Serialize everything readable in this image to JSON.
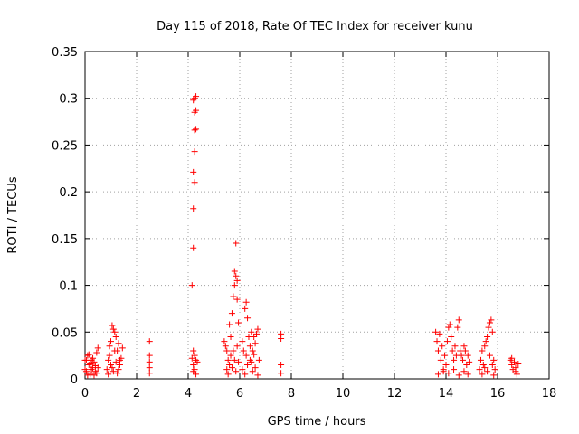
{
  "chart_data": {
    "type": "scatter",
    "title": "Day 115 of 2018, Rate Of TEC Index for receiver kunu",
    "xlabel": "GPS time / hours",
    "ylabel": "ROTI / TECUs",
    "xlim": [
      0,
      18
    ],
    "ylim": [
      0,
      0.35
    ],
    "xticks": [
      0,
      2,
      4,
      6,
      8,
      10,
      12,
      14,
      16,
      18
    ],
    "xtick_labels": [
      "0",
      "2",
      "4",
      "6",
      "8",
      "10",
      "12",
      "14",
      "16",
      "18"
    ],
    "yticks": [
      0,
      0.05,
      0.1,
      0.15,
      0.2,
      0.25,
      0.3,
      0.35
    ],
    "ytick_labels": [
      "0",
      "0.05",
      "0.1",
      "0.15",
      "0.2",
      "0.25",
      "0.3",
      "0.35"
    ],
    "grid": true,
    "marker": "+",
    "color": "#ff0000",
    "series": [
      {
        "name": "ROTI",
        "points": [
          [
            0.0,
            0.01
          ],
          [
            0.05,
            0.02
          ],
          [
            0.1,
            0.025
          ],
          [
            0.15,
            0.015
          ],
          [
            0.2,
            0.005
          ],
          [
            0.25,
            0.02
          ],
          [
            0.3,
            0.012
          ],
          [
            0.35,
            0.018
          ],
          [
            0.4,
            0.008
          ],
          [
            0.45,
            0.028
          ],
          [
            0.5,
            0.033
          ],
          [
            0.1,
            0.004
          ],
          [
            0.2,
            0.016
          ],
          [
            0.3,
            0.022
          ],
          [
            0.4,
            0.014
          ],
          [
            0.45,
            0.006
          ],
          [
            0.0,
            0.02
          ],
          [
            0.15,
            0.026
          ],
          [
            0.25,
            0.01
          ],
          [
            0.35,
            0.004
          ],
          [
            0.05,
            0.008
          ],
          [
            0.5,
            0.012
          ],
          [
            0.85,
            0.01
          ],
          [
            0.9,
            0.02
          ],
          [
            0.95,
            0.035
          ],
          [
            1.0,
            0.04
          ],
          [
            1.05,
            0.057
          ],
          [
            1.1,
            0.053
          ],
          [
            1.15,
            0.05
          ],
          [
            1.2,
            0.045
          ],
          [
            1.25,
            0.03
          ],
          [
            1.3,
            0.038
          ],
          [
            1.35,
            0.02
          ],
          [
            0.9,
            0.005
          ],
          [
            1.0,
            0.015
          ],
          [
            1.1,
            0.008
          ],
          [
            1.2,
            0.018
          ],
          [
            1.3,
            0.01
          ],
          [
            1.4,
            0.022
          ],
          [
            1.45,
            0.033
          ],
          [
            0.95,
            0.025
          ],
          [
            1.05,
            0.012
          ],
          [
            1.15,
            0.03
          ],
          [
            1.25,
            0.006
          ],
          [
            1.35,
            0.015
          ],
          [
            2.5,
            0.04
          ],
          [
            2.5,
            0.025
          ],
          [
            2.5,
            0.018
          ],
          [
            2.5,
            0.012
          ],
          [
            2.5,
            0.006
          ],
          [
            4.15,
            0.1
          ],
          [
            4.2,
            0.14
          ],
          [
            4.2,
            0.182
          ],
          [
            4.25,
            0.21
          ],
          [
            4.2,
            0.221
          ],
          [
            4.25,
            0.243
          ],
          [
            4.25,
            0.266
          ],
          [
            4.3,
            0.267
          ],
          [
            4.25,
            0.285
          ],
          [
            4.3,
            0.287
          ],
          [
            4.2,
            0.298
          ],
          [
            4.3,
            0.302
          ],
          [
            4.25,
            0.3
          ],
          [
            4.2,
            0.03
          ],
          [
            4.25,
            0.025
          ],
          [
            4.3,
            0.02
          ],
          [
            4.2,
            0.015
          ],
          [
            4.25,
            0.01
          ],
          [
            4.3,
            0.005
          ],
          [
            4.35,
            0.018
          ],
          [
            4.15,
            0.022
          ],
          [
            4.2,
            0.008
          ],
          [
            5.4,
            0.04
          ],
          [
            5.45,
            0.035
          ],
          [
            5.5,
            0.03
          ],
          [
            5.55,
            0.02
          ],
          [
            5.6,
            0.058
          ],
          [
            5.65,
            0.045
          ],
          [
            5.7,
            0.07
          ],
          [
            5.75,
            0.088
          ],
          [
            5.8,
            0.1
          ],
          [
            5.85,
            0.11
          ],
          [
            5.8,
            0.115
          ],
          [
            5.9,
            0.105
          ],
          [
            5.85,
            0.145
          ],
          [
            5.9,
            0.085
          ],
          [
            5.95,
            0.06
          ],
          [
            5.5,
            0.01
          ],
          [
            5.55,
            0.005
          ],
          [
            5.6,
            0.015
          ],
          [
            5.65,
            0.025
          ],
          [
            5.7,
            0.012
          ],
          [
            5.75,
            0.03
          ],
          [
            5.8,
            0.02
          ],
          [
            5.85,
            0.008
          ],
          [
            5.9,
            0.035
          ],
          [
            5.95,
            0.018
          ],
          [
            6.1,
            0.04
          ],
          [
            6.15,
            0.03
          ],
          [
            6.2,
            0.075
          ],
          [
            6.25,
            0.082
          ],
          [
            6.3,
            0.065
          ],
          [
            6.35,
            0.045
          ],
          [
            6.4,
            0.035
          ],
          [
            6.45,
            0.05
          ],
          [
            6.5,
            0.03
          ],
          [
            6.55,
            0.045
          ],
          [
            6.6,
            0.038
          ],
          [
            6.65,
            0.048
          ],
          [
            6.7,
            0.053
          ],
          [
            6.75,
            0.02
          ],
          [
            6.1,
            0.01
          ],
          [
            6.2,
            0.005
          ],
          [
            6.3,
            0.015
          ],
          [
            6.4,
            0.02
          ],
          [
            6.5,
            0.008
          ],
          [
            6.6,
            0.012
          ],
          [
            6.7,
            0.004
          ],
          [
            6.25,
            0.025
          ],
          [
            6.45,
            0.018
          ],
          [
            6.55,
            0.026
          ],
          [
            7.6,
            0.048
          ],
          [
            7.6,
            0.043
          ],
          [
            7.6,
            0.015
          ],
          [
            7.6,
            0.006
          ],
          [
            13.6,
            0.05
          ],
          [
            13.65,
            0.04
          ],
          [
            13.7,
            0.03
          ],
          [
            13.75,
            0.048
          ],
          [
            13.8,
            0.02
          ],
          [
            13.85,
            0.035
          ],
          [
            13.9,
            0.01
          ],
          [
            13.95,
            0.025
          ],
          [
            14.0,
            0.015
          ],
          [
            14.05,
            0.04
          ],
          [
            14.1,
            0.055
          ],
          [
            14.15,
            0.058
          ],
          [
            14.2,
            0.045
          ],
          [
            14.25,
            0.03
          ],
          [
            14.3,
            0.02
          ],
          [
            14.35,
            0.035
          ],
          [
            14.4,
            0.025
          ],
          [
            14.45,
            0.055
          ],
          [
            14.5,
            0.063
          ],
          [
            14.55,
            0.03
          ],
          [
            14.6,
            0.025
          ],
          [
            14.65,
            0.02
          ],
          [
            14.7,
            0.035
          ],
          [
            14.75,
            0.03
          ],
          [
            14.8,
            0.015
          ],
          [
            14.85,
            0.025
          ],
          [
            14.9,
            0.018
          ],
          [
            13.7,
            0.005
          ],
          [
            13.9,
            0.008
          ],
          [
            14.1,
            0.006
          ],
          [
            14.3,
            0.01
          ],
          [
            14.5,
            0.004
          ],
          [
            14.7,
            0.008
          ],
          [
            14.85,
            0.005
          ],
          [
            15.3,
            0.01
          ],
          [
            15.35,
            0.02
          ],
          [
            15.4,
            0.03
          ],
          [
            15.45,
            0.015
          ],
          [
            15.5,
            0.035
          ],
          [
            15.55,
            0.04
          ],
          [
            15.6,
            0.045
          ],
          [
            15.65,
            0.055
          ],
          [
            15.7,
            0.06
          ],
          [
            15.75,
            0.063
          ],
          [
            15.8,
            0.05
          ],
          [
            15.85,
            0.02
          ],
          [
            15.9,
            0.01
          ],
          [
            15.4,
            0.005
          ],
          [
            15.5,
            0.012
          ],
          [
            15.6,
            0.008
          ],
          [
            15.7,
            0.025
          ],
          [
            15.8,
            0.015
          ],
          [
            15.85,
            0.004
          ],
          [
            16.5,
            0.02
          ],
          [
            16.55,
            0.015
          ],
          [
            16.6,
            0.01
          ],
          [
            16.65,
            0.018
          ],
          [
            16.7,
            0.012
          ],
          [
            16.75,
            0.005
          ],
          [
            16.8,
            0.016
          ],
          [
            16.55,
            0.022
          ],
          [
            16.7,
            0.008
          ]
        ]
      }
    ]
  }
}
